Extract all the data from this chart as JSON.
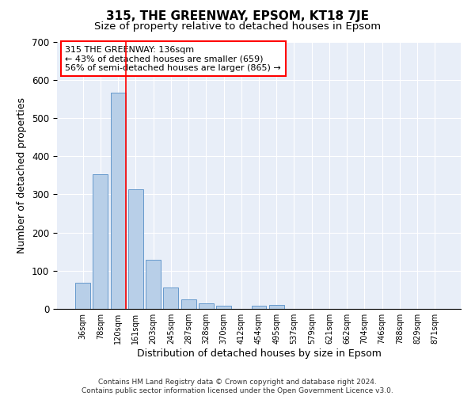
{
  "title": "315, THE GREENWAY, EPSOM, KT18 7JE",
  "subtitle": "Size of property relative to detached houses in Epsom",
  "xlabel": "Distribution of detached houses by size in Epsom",
  "ylabel": "Number of detached properties",
  "bar_labels": [
    "36sqm",
    "78sqm",
    "120sqm",
    "161sqm",
    "203sqm",
    "245sqm",
    "287sqm",
    "328sqm",
    "370sqm",
    "412sqm",
    "454sqm",
    "495sqm",
    "537sqm",
    "579sqm",
    "621sqm",
    "662sqm",
    "704sqm",
    "746sqm",
    "788sqm",
    "829sqm",
    "871sqm"
  ],
  "bar_values": [
    68,
    352,
    566,
    313,
    128,
    57,
    25,
    14,
    8,
    0,
    8,
    10,
    0,
    0,
    0,
    0,
    0,
    0,
    0,
    0,
    0
  ],
  "bar_color": "#b8cfe8",
  "bar_edgecolor": "#6699cc",
  "redline_x": 2.43,
  "annotation_text": "315 THE GREENWAY: 136sqm\n← 43% of detached houses are smaller (659)\n56% of semi-detached houses are larger (865) →",
  "annotation_box_color": "white",
  "annotation_box_edgecolor": "red",
  "redline_color": "red",
  "ylim": [
    0,
    700
  ],
  "yticks": [
    0,
    100,
    200,
    300,
    400,
    500,
    600,
    700
  ],
  "footer": "Contains HM Land Registry data © Crown copyright and database right 2024.\nContains public sector information licensed under the Open Government Licence v3.0.",
  "plot_background": "#e8eef8",
  "title_fontsize": 11,
  "subtitle_fontsize": 9.5,
  "xlabel_fontsize": 9,
  "ylabel_fontsize": 9,
  "annotation_fontsize": 8
}
